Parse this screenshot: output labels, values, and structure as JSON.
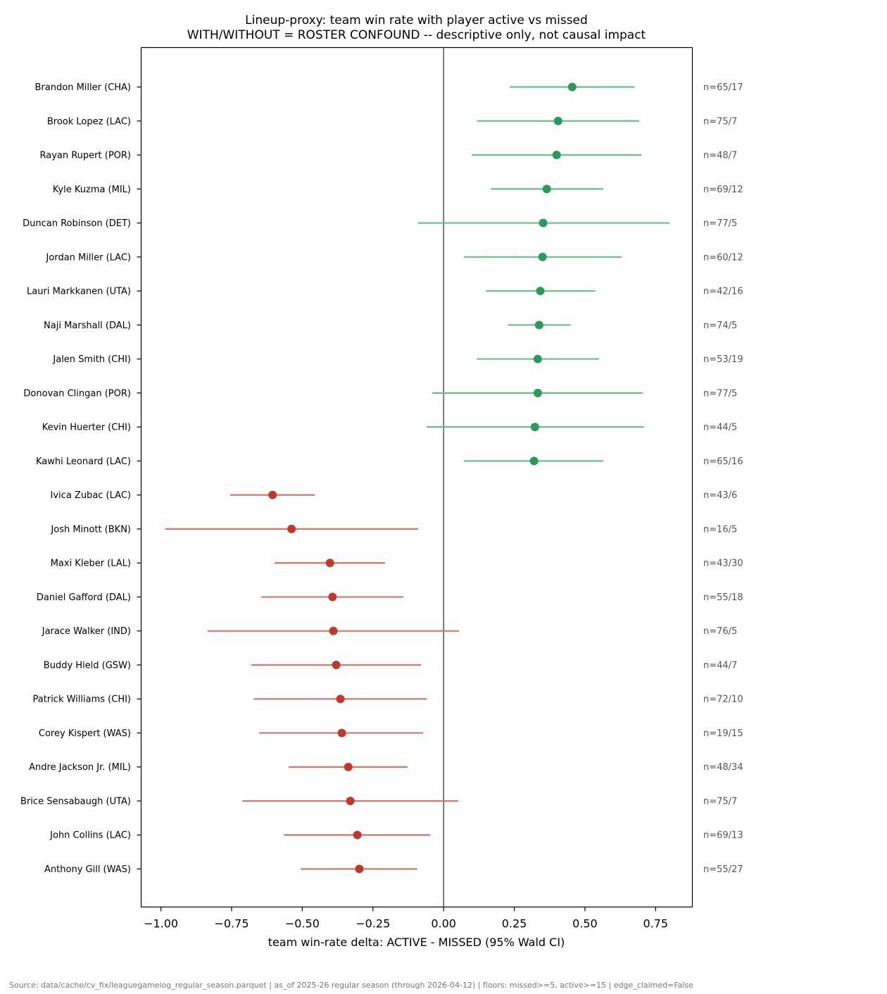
{
  "chart_data": {
    "type": "scatter",
    "subtype": "forest-plot-dot-with-ci",
    "title": "Lineup-proxy: team win rate with player active vs missed",
    "subtitle": "WITH/WITHOUT = ROSTER CONFOUND -- descriptive only, not causal impact",
    "xlabel": "team win-rate delta: ACTIVE - MISSED (95% Wald CI)",
    "ylabel": "",
    "xlim": [
      -1.07,
      0.88
    ],
    "x_ticks": [
      -1.0,
      -0.75,
      -0.5,
      -0.25,
      0.0,
      0.25,
      0.5,
      0.75
    ],
    "x_tick_labels": [
      "−1.00",
      "−0.75",
      "−0.50",
      "−0.25",
      "0.00",
      "0.25",
      "0.50",
      "0.75"
    ],
    "reference_line_x": 0.0,
    "grid": false,
    "colors": {
      "positive_point": "#2a9a5a",
      "positive_ci": "#6bbd8d",
      "negative_point": "#c0392b",
      "negative_ci": "#d0766d"
    },
    "rows": [
      {
        "label": "Brandon Miller (CHA)",
        "value": 0.455,
        "ci": [
          0.235,
          0.675
        ],
        "n": "n=65/17"
      },
      {
        "label": "Brook Lopez (LAC)",
        "value": 0.405,
        "ci": [
          0.118,
          0.692
        ],
        "n": "n=75/7"
      },
      {
        "label": "Rayan Rupert (POR)",
        "value": 0.4,
        "ci": [
          0.1,
          0.7
        ],
        "n": "n=48/7"
      },
      {
        "label": "Kyle Kuzma (MIL)",
        "value": 0.365,
        "ci": [
          0.168,
          0.565
        ],
        "n": "n=69/12"
      },
      {
        "label": "Duncan Robinson (DET)",
        "value": 0.352,
        "ci": [
          -0.09,
          0.8
        ],
        "n": "n=77/5"
      },
      {
        "label": "Jordan Miller (LAC)",
        "value": 0.35,
        "ci": [
          0.072,
          0.63
        ],
        "n": "n=60/12"
      },
      {
        "label": "Lauri Markkanen (UTA)",
        "value": 0.342,
        "ci": [
          0.15,
          0.537
        ],
        "n": "n=42/16"
      },
      {
        "label": "Naji Marshall (DAL)",
        "value": 0.338,
        "ci": [
          0.228,
          0.45
        ],
        "n": "n=74/5"
      },
      {
        "label": "Jalen Smith (CHI)",
        "value": 0.333,
        "ci": [
          0.118,
          0.55
        ],
        "n": "n=53/19"
      },
      {
        "label": "Donovan Clingan (POR)",
        "value": 0.333,
        "ci": [
          -0.04,
          0.705
        ],
        "n": "n=77/5"
      },
      {
        "label": "Kevin Huerter (CHI)",
        "value": 0.323,
        "ci": [
          -0.06,
          0.708
        ],
        "n": "n=44/5"
      },
      {
        "label": "Kawhi Leonard (LAC)",
        "value": 0.32,
        "ci": [
          0.072,
          0.565
        ],
        "n": "n=65/16"
      },
      {
        "label": "Ivica Zubac (LAC)",
        "value": -0.605,
        "ci": [
          -0.755,
          -0.455
        ],
        "n": "n=43/6"
      },
      {
        "label": "Josh Minott (BKN)",
        "value": -0.538,
        "ci": [
          -0.985,
          -0.09
        ],
        "n": "n=16/5"
      },
      {
        "label": "Maxi Kleber (LAL)",
        "value": -0.402,
        "ci": [
          -0.598,
          -0.207
        ],
        "n": "n=43/30"
      },
      {
        "label": "Daniel Gafford (DAL)",
        "value": -0.393,
        "ci": [
          -0.645,
          -0.142
        ],
        "n": "n=55/18"
      },
      {
        "label": "Jarace Walker (IND)",
        "value": -0.39,
        "ci": [
          -0.835,
          0.055
        ],
        "n": "n=76/5"
      },
      {
        "label": "Buddy Hield (GSW)",
        "value": -0.38,
        "ci": [
          -0.68,
          -0.08
        ],
        "n": "n=44/7"
      },
      {
        "label": "Patrick Williams (CHI)",
        "value": -0.365,
        "ci": [
          -0.672,
          -0.06
        ],
        "n": "n=72/10"
      },
      {
        "label": "Corey Kispert (WAS)",
        "value": -0.36,
        "ci": [
          -0.652,
          -0.072
        ],
        "n": "n=19/15"
      },
      {
        "label": "Andre Jackson Jr. (MIL)",
        "value": -0.337,
        "ci": [
          -0.548,
          -0.128
        ],
        "n": "n=48/34"
      },
      {
        "label": "Brice Sensabaugh (UTA)",
        "value": -0.33,
        "ci": [
          -0.712,
          0.052
        ],
        "n": "n=75/7"
      },
      {
        "label": "John Collins (LAC)",
        "value": -0.305,
        "ci": [
          -0.565,
          -0.047
        ],
        "n": "n=69/13"
      },
      {
        "label": "Anthony Gill (WAS)",
        "value": -0.298,
        "ci": [
          -0.505,
          -0.093
        ],
        "n": "n=55/27"
      }
    ]
  },
  "footer": "Source: data/cache/cv_fix/leaguegamelog_regular_season.parquet | as_of 2025-26 regular season (through 2026-04-12) | floors: missed>=5, active>=15 | edge_claimed=False"
}
